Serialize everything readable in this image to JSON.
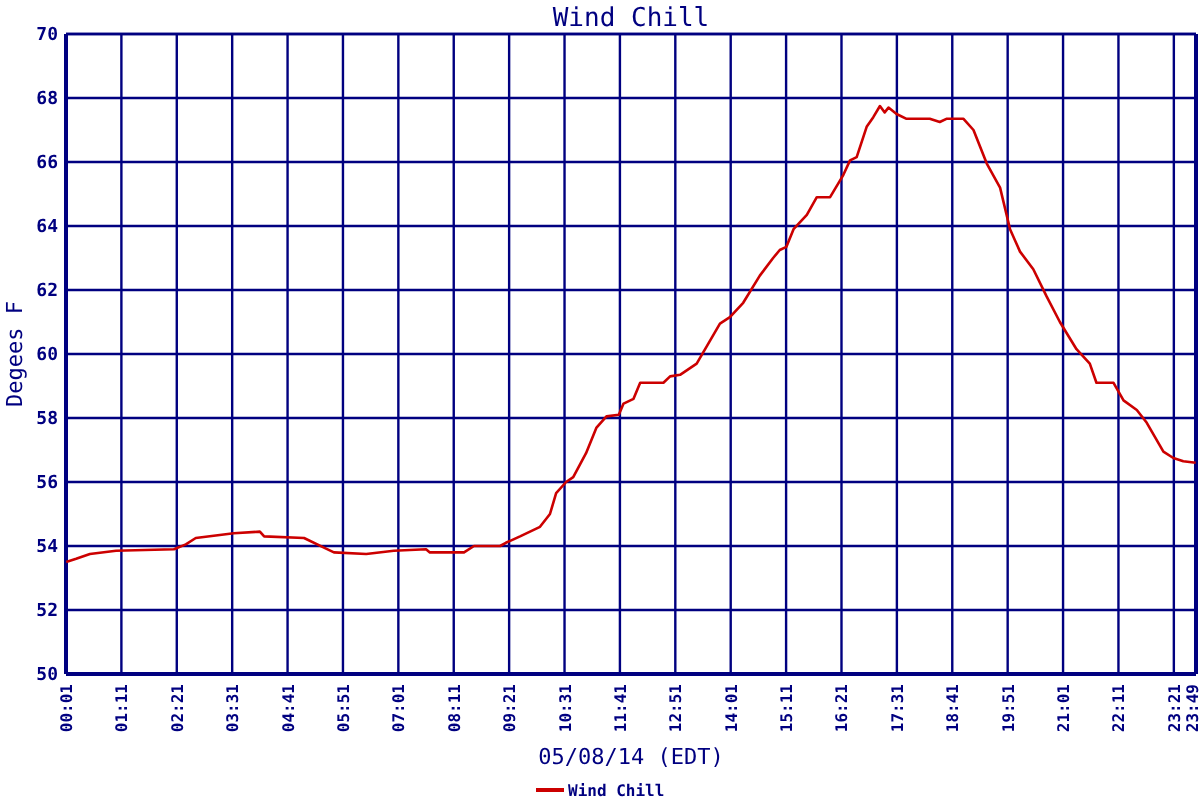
{
  "chart_data": {
    "type": "line",
    "title": "Wind Chill",
    "xlabel": "05/08/14 (EDT)",
    "ylabel": "Degees F",
    "xlim": [
      0.0167,
      23.8167
    ],
    "xticks": [
      {
        "value": 0.0167,
        "label": "00:01"
      },
      {
        "value": 1.1833,
        "label": "01:11"
      },
      {
        "value": 2.35,
        "label": "02:21"
      },
      {
        "value": 3.5167,
        "label": "03:31"
      },
      {
        "value": 4.6833,
        "label": "04:41"
      },
      {
        "value": 5.85,
        "label": "05:51"
      },
      {
        "value": 7.0167,
        "label": "07:01"
      },
      {
        "value": 8.1833,
        "label": "08:11"
      },
      {
        "value": 9.35,
        "label": "09:21"
      },
      {
        "value": 10.5167,
        "label": "10:31"
      },
      {
        "value": 11.6833,
        "label": "11:41"
      },
      {
        "value": 12.85,
        "label": "12:51"
      },
      {
        "value": 14.0167,
        "label": "14:01"
      },
      {
        "value": 15.1833,
        "label": "15:11"
      },
      {
        "value": 16.35,
        "label": "16:21"
      },
      {
        "value": 17.5167,
        "label": "17:31"
      },
      {
        "value": 18.6833,
        "label": "18:41"
      },
      {
        "value": 19.85,
        "label": "19:51"
      },
      {
        "value": 21.0167,
        "label": "21:01"
      },
      {
        "value": 22.1833,
        "label": "22:11"
      },
      {
        "value": 23.35,
        "label": "23:21"
      },
      {
        "value": 23.8167,
        "label": "23:49"
      }
    ],
    "ylim": [
      50,
      70
    ],
    "yticks": [
      50,
      52,
      54,
      56,
      58,
      60,
      62,
      64,
      66,
      68,
      70
    ],
    "grid": true,
    "legend": "bottom",
    "series": [
      {
        "name": "Wind Chill",
        "color": "#cc0000",
        "x": [
          0.02,
          0.23,
          0.52,
          1.07,
          2.29,
          2.54,
          2.75,
          3.55,
          4.1,
          4.19,
          5.03,
          5.45,
          5.66,
          6.34,
          6.92,
          7.6,
          7.68,
          8.4,
          8.61,
          9.16,
          9.28,
          9.58,
          10.0,
          10.21,
          10.34,
          10.55,
          10.7,
          10.97,
          11.19,
          11.4,
          11.66,
          11.76,
          11.97,
          12.11,
          12.6,
          12.74,
          12.95,
          13.3,
          13.79,
          14.0,
          14.28,
          14.63,
          14.91,
          15.05,
          15.19,
          15.34,
          15.62,
          15.83,
          16.11,
          16.39,
          16.53,
          16.67,
          16.88,
          17.02,
          17.16,
          17.26,
          17.34,
          17.51,
          17.72,
          18.21,
          18.42,
          18.56,
          18.92,
          19.13,
          19.41,
          19.69,
          19.9,
          20.11,
          20.39,
          20.67,
          20.95,
          21.3,
          21.58,
          21.72,
          22.08,
          22.29,
          22.57,
          22.78,
          23.13,
          23.34,
          23.55,
          23.81
        ],
        "values": [
          53.5,
          53.6,
          53.75,
          53.85,
          53.9,
          54.05,
          54.25,
          54.4,
          54.45,
          54.3,
          54.25,
          53.95,
          53.8,
          53.75,
          53.85,
          53.9,
          53.8,
          53.8,
          54.0,
          54.0,
          54.1,
          54.3,
          54.6,
          55.0,
          55.65,
          56.0,
          56.15,
          56.9,
          57.7,
          58.05,
          58.1,
          58.45,
          58.6,
          59.1,
          59.1,
          59.3,
          59.35,
          59.7,
          60.95,
          61.15,
          61.6,
          62.45,
          63.0,
          63.25,
          63.35,
          63.9,
          64.35,
          64.9,
          64.9,
          65.6,
          66.05,
          66.15,
          67.1,
          67.4,
          67.75,
          67.55,
          67.7,
          67.5,
          67.35,
          67.35,
          67.25,
          67.35,
          67.35,
          67.0,
          65.95,
          65.2,
          63.9,
          63.2,
          62.65,
          61.8,
          61.0,
          60.15,
          59.7,
          59.1,
          59.1,
          58.55,
          58.25,
          57.85,
          56.95,
          56.75,
          56.65,
          56.6
        ]
      }
    ]
  }
}
